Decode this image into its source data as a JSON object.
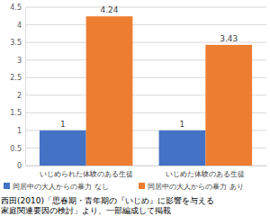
{
  "chart_data": {
    "type": "bar",
    "categories": [
      "いじめられた体験のある生徒",
      "いじめた体験のある生徒"
    ],
    "series": [
      {
        "name": "同居中の大人からの暴力 なし",
        "color": "#4472c4",
        "values": [
          1,
          1
        ]
      },
      {
        "name": "同居中の大人からの暴力 あり",
        "color": "#ed7d31",
        "values": [
          4.24,
          3.43
        ]
      }
    ],
    "ylim": [
      0,
      4.5
    ],
    "yticks": [
      0,
      0.5,
      1,
      1.5,
      2,
      2.5,
      3,
      3.5,
      4,
      4.5
    ],
    "grid": true,
    "data_labels": true,
    "legend": "bottom",
    "source": [
      "西田(2010)「思春期・青年期の『いじめ』に影響を与える",
      "家庭関連要因の検討」より、一部編成して掲載"
    ]
  }
}
